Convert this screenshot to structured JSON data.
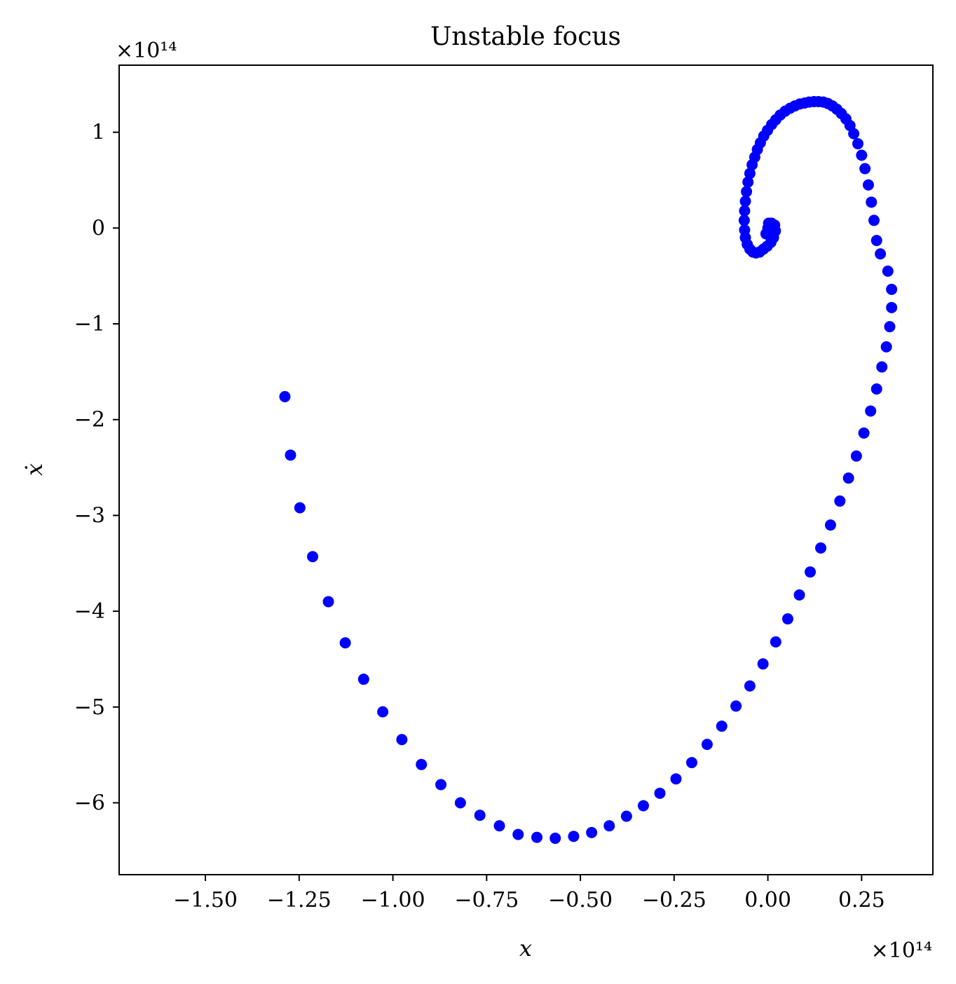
{
  "chart_data": {
    "type": "scatter",
    "title": "Unstable focus",
    "xlabel": "x",
    "ylabel": "ẋ",
    "x_offset_text": "×10¹⁴",
    "y_offset_text": "×10¹⁴",
    "xlim": [
      -1.73,
      0.44
    ],
    "ylim": [
      -6.75,
      1.7
    ],
    "xticks": [
      -1.5,
      -1.25,
      -1.0,
      -0.75,
      -0.5,
      -0.25,
      0.0,
      0.25
    ],
    "xtick_labels": [
      "−1.50",
      "−1.25",
      "−1.00",
      "−0.75",
      "−0.50",
      "−0.25",
      "0.00",
      "0.25"
    ],
    "yticks": [
      -6,
      -5,
      -4,
      -3,
      -2,
      -1,
      0,
      1
    ],
    "ytick_labels": [
      "−6",
      "−5",
      "−4",
      "−3",
      "−2",
      "−1",
      "0",
      "1"
    ],
    "grid": false,
    "marker_color": "#0000ff",
    "series": [
      {
        "points": [
          [
            0.0,
            0.0
          ],
          [
            0.005,
            0.02
          ],
          [
            0.01,
            0.01
          ],
          [
            0.015,
            -0.01
          ],
          [
            0.012,
            -0.05
          ],
          [
            0.005,
            -0.08
          ],
          [
            -0.005,
            -0.06
          ],
          [
            0.002,
            0.05
          ],
          [
            0.01,
            0.05
          ],
          [
            0.018,
            0.03
          ],
          [
            0.02,
            -0.03
          ],
          [
            0.015,
            -0.1
          ],
          [
            0.008,
            -0.15
          ],
          [
            -0.002,
            -0.19
          ],
          [
            -0.012,
            -0.22
          ],
          [
            -0.022,
            -0.25
          ],
          [
            -0.032,
            -0.26
          ],
          [
            -0.04,
            -0.25
          ],
          [
            -0.048,
            -0.22
          ],
          [
            -0.055,
            -0.17
          ],
          [
            -0.06,
            -0.1
          ],
          [
            -0.062,
            -0.02
          ],
          [
            -0.063,
            0.08
          ],
          [
            -0.062,
            0.18
          ],
          [
            -0.06,
            0.28
          ],
          [
            -0.057,
            0.38
          ],
          [
            -0.053,
            0.48
          ],
          [
            -0.048,
            0.57
          ],
          [
            -0.042,
            0.66
          ],
          [
            -0.035,
            0.74
          ],
          [
            -0.028,
            0.82
          ],
          [
            -0.02,
            0.89
          ],
          [
            -0.011,
            0.96
          ],
          [
            -0.001,
            1.02
          ],
          [
            0.01,
            1.08
          ],
          [
            0.021,
            1.13
          ],
          [
            0.033,
            1.18
          ],
          [
            0.046,
            1.22
          ],
          [
            0.059,
            1.25
          ],
          [
            0.072,
            1.275
          ],
          [
            0.085,
            1.295
          ],
          [
            0.098,
            1.305
          ],
          [
            0.11,
            1.315
          ],
          [
            0.123,
            1.32
          ],
          [
            0.135,
            1.32
          ],
          [
            0.148,
            1.315
          ],
          [
            0.16,
            1.3
          ],
          [
            0.172,
            1.275
          ],
          [
            0.184,
            1.24
          ],
          [
            0.196,
            1.195
          ],
          [
            0.208,
            1.14
          ],
          [
            0.219,
            1.07
          ],
          [
            0.229,
            0.985
          ],
          [
            0.24,
            0.88
          ],
          [
            0.25,
            0.76
          ],
          [
            0.259,
            0.62
          ],
          [
            0.268,
            0.45
          ],
          [
            0.276,
            0.27
          ],
          [
            0.283,
            0.08
          ],
          [
            0.29,
            -0.13
          ],
          [
            0.3,
            -0.27
          ],
          [
            0.32,
            -0.45
          ],
          [
            0.33,
            -0.64
          ],
          [
            0.33,
            -0.83
          ],
          [
            0.325,
            -1.03
          ],
          [
            0.316,
            -1.24
          ],
          [
            0.304,
            -1.45
          ],
          [
            0.29,
            -1.68
          ],
          [
            0.274,
            -1.91
          ],
          [
            0.256,
            -2.14
          ],
          [
            0.236,
            -2.38
          ],
          [
            0.215,
            -2.61
          ],
          [
            0.192,
            -2.85
          ],
          [
            0.167,
            -3.1
          ],
          [
            0.141,
            -3.34
          ],
          [
            0.113,
            -3.59
          ],
          [
            0.084,
            -3.83
          ],
          [
            0.053,
            -4.08
          ],
          [
            0.021,
            -4.32
          ],
          [
            -0.013,
            -4.55
          ],
          [
            -0.048,
            -4.78
          ],
          [
            -0.085,
            -4.99
          ],
          [
            -0.123,
            -5.2
          ],
          [
            -0.162,
            -5.39
          ],
          [
            -0.203,
            -5.58
          ],
          [
            -0.245,
            -5.75
          ],
          [
            -0.288,
            -5.9
          ],
          [
            -0.332,
            -6.03
          ],
          [
            -0.377,
            -6.14
          ],
          [
            -0.423,
            -6.24
          ],
          [
            -0.47,
            -6.31
          ],
          [
            -0.518,
            -6.35
          ],
          [
            -0.567,
            -6.37
          ],
          [
            -0.616,
            -6.36
          ],
          [
            -0.666,
            -6.33
          ],
          [
            -0.716,
            -6.24
          ],
          [
            -0.768,
            -6.13
          ],
          [
            -0.82,
            -6.0
          ],
          [
            -0.872,
            -5.81
          ],
          [
            -0.924,
            -5.6
          ],
          [
            -0.976,
            -5.34
          ],
          [
            -1.027,
            -5.05
          ],
          [
            -1.078,
            -4.71
          ],
          [
            -1.127,
            -4.33
          ],
          [
            -1.172,
            -3.9
          ],
          [
            -1.214,
            -3.43
          ],
          [
            -1.248,
            -2.92
          ],
          [
            -1.273,
            -2.37
          ],
          [
            -1.288,
            -1.76
          ]
        ]
      }
    ]
  }
}
